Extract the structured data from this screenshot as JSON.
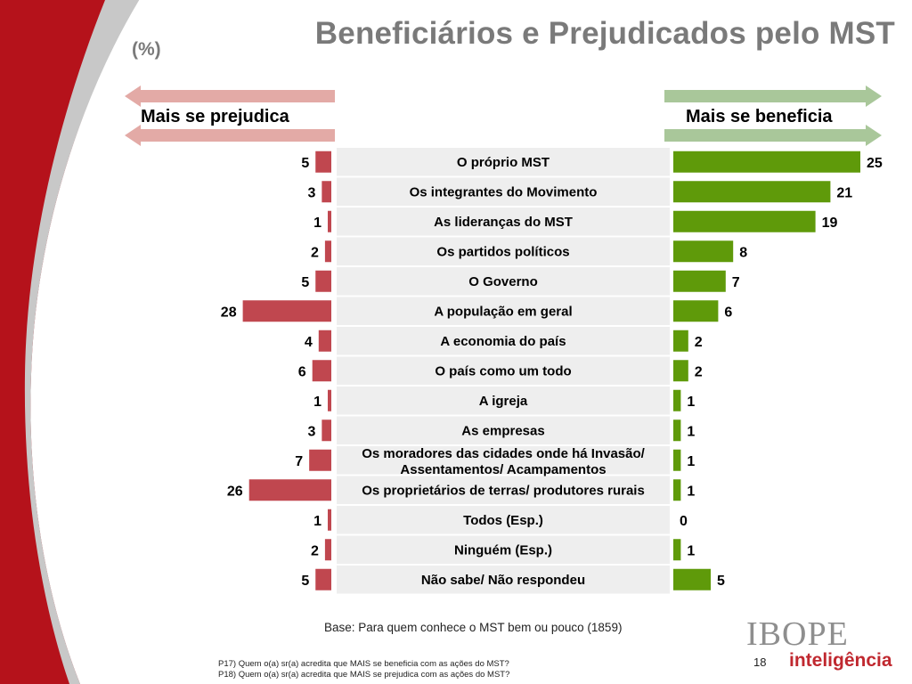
{
  "header": {
    "title": "Beneficiários e Prejudicados pelo MST",
    "subtitle": "(%)"
  },
  "legend": {
    "left_label": "Mais se prejudica",
    "right_label": "Mais se beneficia"
  },
  "colors": {
    "prejudica_bar": "#c0474f",
    "beneficia_bar": "#5f9a0a",
    "label_bg": "#eeeeee",
    "left_arrow": "#e3aaa6",
    "right_arrow": "#a9c79a",
    "decor_red": "#b5121b",
    "decor_gray": "#c8c8c8"
  },
  "chart_data": {
    "type": "bar",
    "orientation": "horizontal-diverging",
    "categories": [
      "O próprio MST",
      "Os integrantes do Movimento",
      "As lideranças do MST",
      "Os partidos políticos",
      "O Governo",
      "A população em geral",
      "A economia do país",
      "O país como um todo",
      "A igreja",
      "As empresas",
      "Os moradores das cidades onde há Invasão/ Assentamentos/ Acampamentos",
      "Os proprietários de terras/ produtores rurais",
      "Todos (Esp.)",
      "Ninguém (Esp.)",
      "Não sabe/ Não respondeu"
    ],
    "series": [
      {
        "name": "Mais se prejudica",
        "values": [
          5,
          3,
          1,
          2,
          5,
          28,
          4,
          6,
          1,
          3,
          7,
          26,
          1,
          2,
          5
        ]
      },
      {
        "name": "Mais se beneficia",
        "values": [
          25,
          21,
          19,
          8,
          7,
          6,
          2,
          2,
          1,
          1,
          1,
          1,
          0,
          1,
          5
        ]
      }
    ]
  },
  "footer": {
    "base_note": "Base: Para quem conhece o MST bem ou pouco (1859)",
    "question_1": "P17) Quem o(a) sr(a) acredita que MAIS se beneficia com as ações do MST?",
    "question_2": "P18) Quem o(a) sr(a) acredita que MAIS se prejudica com as ações do MST?",
    "page_number": "18",
    "logo_brand": "IBOPE",
    "logo_sub": "inteligência"
  }
}
